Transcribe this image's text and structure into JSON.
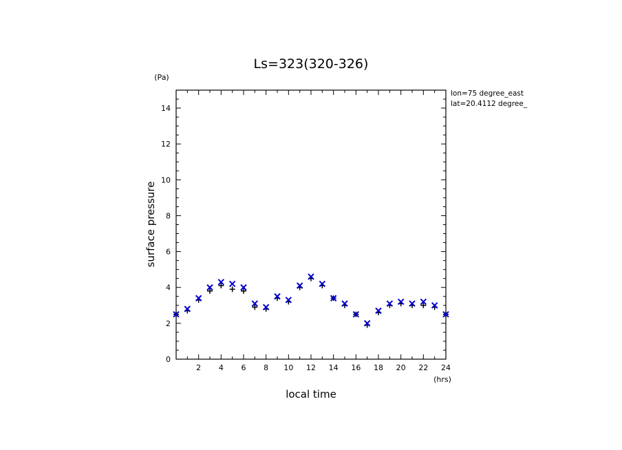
{
  "chart_data": {
    "type": "scatter",
    "title": "Ls=323(320-326)",
    "xlabel": "local time",
    "ylabel": "surface pressure",
    "x_unit": "(hrs)",
    "y_unit": "(Pa)",
    "xlim": [
      0,
      24
    ],
    "ylim": [
      0,
      15
    ],
    "x_ticks": [
      2,
      4,
      6,
      8,
      10,
      12,
      14,
      16,
      18,
      20,
      22,
      24
    ],
    "y_ticks": [
      0,
      2,
      4,
      6,
      8,
      10,
      12,
      14
    ],
    "grid": false,
    "annotations": [
      "lon=75 degree_east",
      "lat=20.4112 degree_"
    ],
    "series": [
      {
        "marker": "plus",
        "color": "#000000",
        "x": [
          0,
          1,
          2,
          3,
          4,
          5,
          6,
          7,
          8,
          9,
          10,
          11,
          12,
          13,
          14,
          15,
          16,
          17,
          18,
          19,
          20,
          21,
          22,
          23,
          24
        ],
        "values": [
          2.5,
          2.7,
          3.3,
          3.8,
          4.1,
          3.9,
          3.8,
          2.9,
          2.8,
          3.4,
          3.2,
          4.0,
          4.5,
          4.1,
          3.4,
          3.0,
          2.5,
          1.9,
          2.6,
          3.0,
          3.1,
          3.0,
          3.0,
          2.9,
          2.5
        ]
      },
      {
        "marker": "x",
        "color": "#0000cc",
        "x": [
          0,
          1,
          2,
          3,
          4,
          5,
          6,
          7,
          8,
          9,
          10,
          11,
          12,
          13,
          14,
          15,
          16,
          17,
          18,
          19,
          20,
          21,
          22,
          23,
          24
        ],
        "values": [
          2.5,
          2.8,
          3.4,
          4.0,
          4.3,
          4.2,
          4.0,
          3.1,
          2.9,
          3.5,
          3.3,
          4.1,
          4.6,
          4.2,
          3.4,
          3.1,
          2.5,
          2.0,
          2.7,
          3.1,
          3.2,
          3.1,
          3.2,
          3.0,
          2.5
        ]
      }
    ]
  }
}
